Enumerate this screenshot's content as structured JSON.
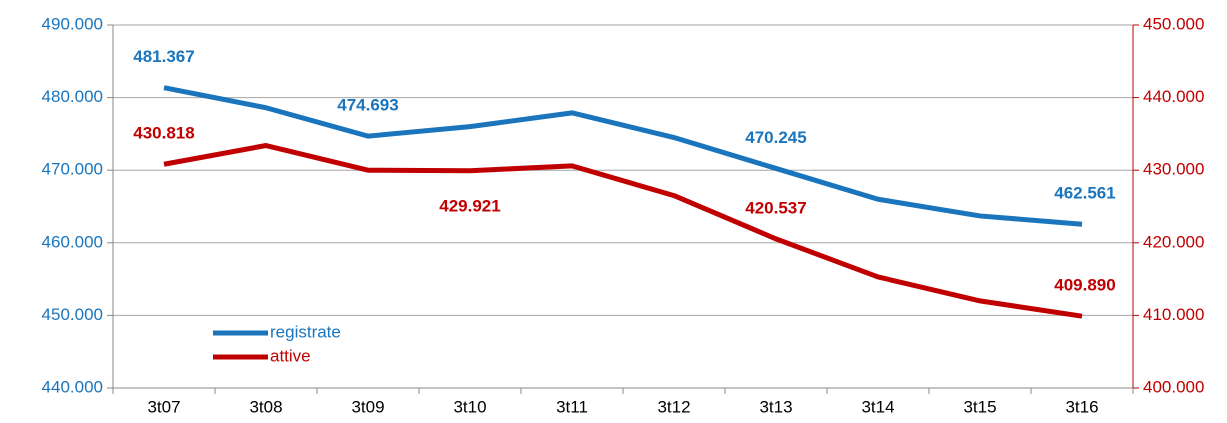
{
  "chart_data": {
    "type": "line",
    "categories": [
      "3t07",
      "3t08",
      "3t09",
      "3t10",
      "3t11",
      "3t12",
      "3t13",
      "3t14",
      "3t15",
      "3t16"
    ],
    "series": [
      {
        "name": "registrate",
        "color": "#1a75bc",
        "axis": "y",
        "values": [
          481367,
          478600,
          474693,
          476000,
          477900,
          474500,
          470245,
          466000,
          463700,
          462561
        ],
        "value_labels": [
          "481.367",
          null,
          "474.693",
          null,
          null,
          null,
          "470.245",
          null,
          null,
          "462.561"
        ]
      },
      {
        "name": "attive",
        "color": "#c00000",
        "axis": "y2",
        "values": [
          430818,
          433400,
          430000,
          429921,
          430600,
          426500,
          420537,
          415300,
          412000,
          409890
        ],
        "value_labels": [
          "430.818",
          null,
          null,
          "429.921",
          null,
          null,
          "420.537",
          null,
          null,
          "409.890"
        ]
      }
    ],
    "ylim": [
      440000,
      490000
    ],
    "yticks": [
      {
        "value": 440000,
        "label": "440.000"
      },
      {
        "value": 450000,
        "label": "450.000"
      },
      {
        "value": 460000,
        "label": "460.000"
      },
      {
        "value": 470000,
        "label": "470.000"
      },
      {
        "value": 480000,
        "label": "480.000"
      },
      {
        "value": 490000,
        "label": "490.000"
      }
    ],
    "y2lim": [
      400000,
      450000
    ],
    "y2ticks": [
      {
        "value": 400000,
        "label": "400.000"
      },
      {
        "value": 410000,
        "label": "410.000"
      },
      {
        "value": 420000,
        "label": "420.000"
      },
      {
        "value": 430000,
        "label": "430.000"
      },
      {
        "value": 440000,
        "label": "440.000"
      },
      {
        "value": 450000,
        "label": "450.000"
      }
    ],
    "grid": true,
    "legend": "lower left"
  }
}
